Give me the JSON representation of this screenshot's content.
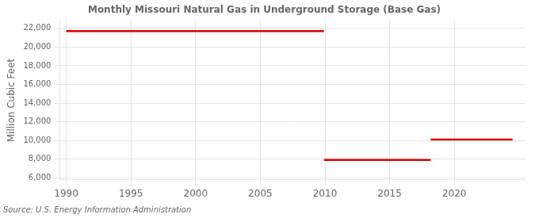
{
  "chart_data": {
    "type": "line",
    "title": "Monthly Missouri Natural Gas in Underground Storage (Base Gas)",
    "ylabel": "Million Cubic Feet",
    "source": "Source: U.S. Energy Information Administration",
    "color": "#dd0000",
    "segments": [
      {
        "x_start": 1990.0,
        "x_end": 2009.92,
        "y": 21700
      },
      {
        "x_start": 2009.92,
        "x_end": 2018.17,
        "y": 7900
      },
      {
        "x_start": 2018.17,
        "x_end": 2024.5,
        "y": 10100
      }
    ],
    "xlim": [
      1989.5,
      2025.5
    ],
    "xticks": [
      1990,
      1995,
      2000,
      2005,
      2010,
      2015,
      2020
    ],
    "ylim": [
      5800,
      22800
    ],
    "yticks": [
      {
        "value": 6000,
        "label": "6,000"
      },
      {
        "value": 8000,
        "label": "8,000"
      },
      {
        "value": 10000,
        "label": "10,000"
      },
      {
        "value": 12000,
        "label": "12,000"
      },
      {
        "value": 14000,
        "label": "14,000"
      },
      {
        "value": 16000,
        "label": "16,000"
      },
      {
        "value": 18000,
        "label": "18,000"
      },
      {
        "value": 20000,
        "label": "20,000"
      },
      {
        "value": 22000,
        "label": "22,000"
      }
    ],
    "grid": true
  }
}
